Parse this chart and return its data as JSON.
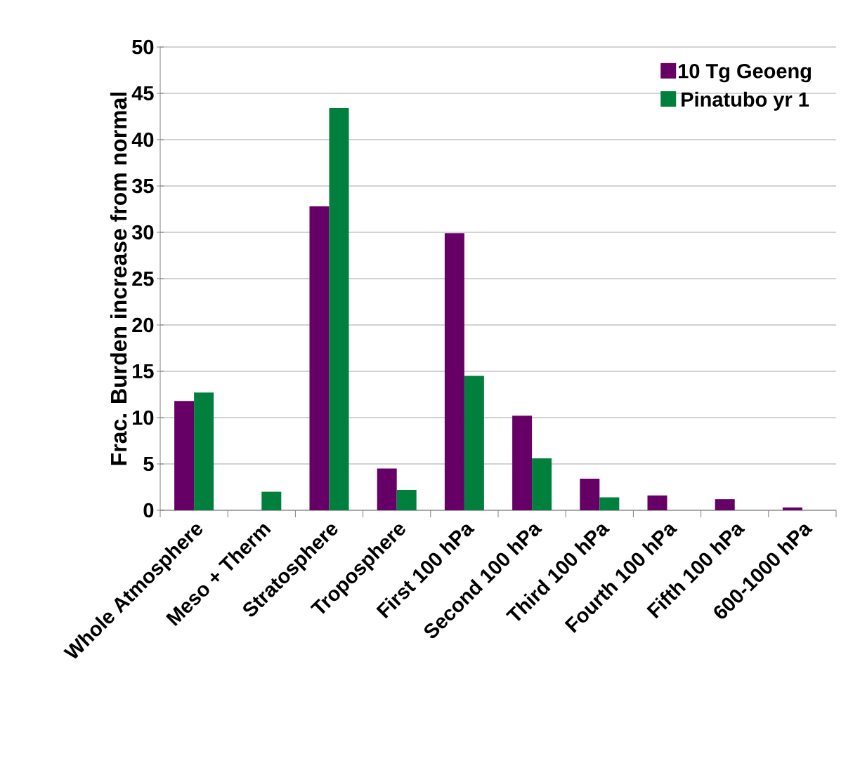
{
  "chart_data": {
    "type": "bar",
    "ylabel": "Frac. Burden increase from normal",
    "categories": [
      "Whole Atmosphere",
      "Meso + Therm",
      "Stratosphere",
      "Troposphere",
      "First 100 hPa",
      "Second 100 hPa",
      "Third 100 hPa",
      "Fourth 100 hPa",
      "Fifth 100 hPa",
      "600-1000 hPa"
    ],
    "series": [
      {
        "name": "10 Tg Geoeng",
        "color": "#660066",
        "values": [
          11.8,
          0,
          32.8,
          4.5,
          29.9,
          10.2,
          3.4,
          1.6,
          1.2,
          0.3
        ]
      },
      {
        "name": "Pinatubo yr 1",
        "color": "#00803c",
        "values": [
          12.7,
          2.0,
          43.4,
          2.2,
          14.5,
          5.6,
          1.4,
          0,
          0,
          0
        ]
      }
    ],
    "ylim": [
      0,
      50
    ],
    "yticks": [
      0,
      5,
      10,
      15,
      20,
      25,
      30,
      35,
      40,
      45,
      50
    ],
    "grid": "y",
    "legend": "top right"
  }
}
